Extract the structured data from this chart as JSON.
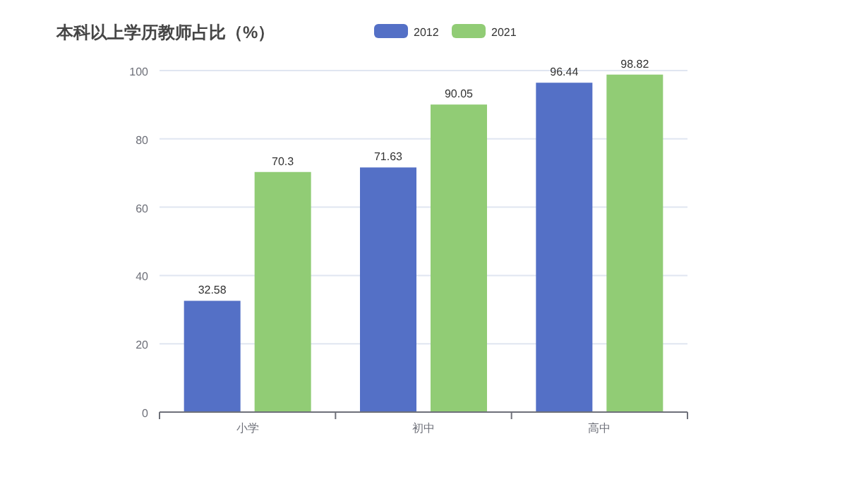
{
  "chart_data": {
    "type": "bar",
    "title": "本科以上学历教师占比（%）",
    "categories": [
      "小学",
      "初中",
      "高中"
    ],
    "series": [
      {
        "name": "2012",
        "color": "#5470c6",
        "values": [
          32.58,
          71.63,
          96.44
        ]
      },
      {
        "name": "2021",
        "color": "#91cc75",
        "values": [
          70.3,
          90.05,
          98.82
        ]
      }
    ],
    "ylim": [
      0,
      100
    ],
    "yticks": [
      0,
      20,
      40,
      60,
      80,
      100
    ],
    "grid": "y",
    "legend": "top",
    "data_labels": true
  }
}
